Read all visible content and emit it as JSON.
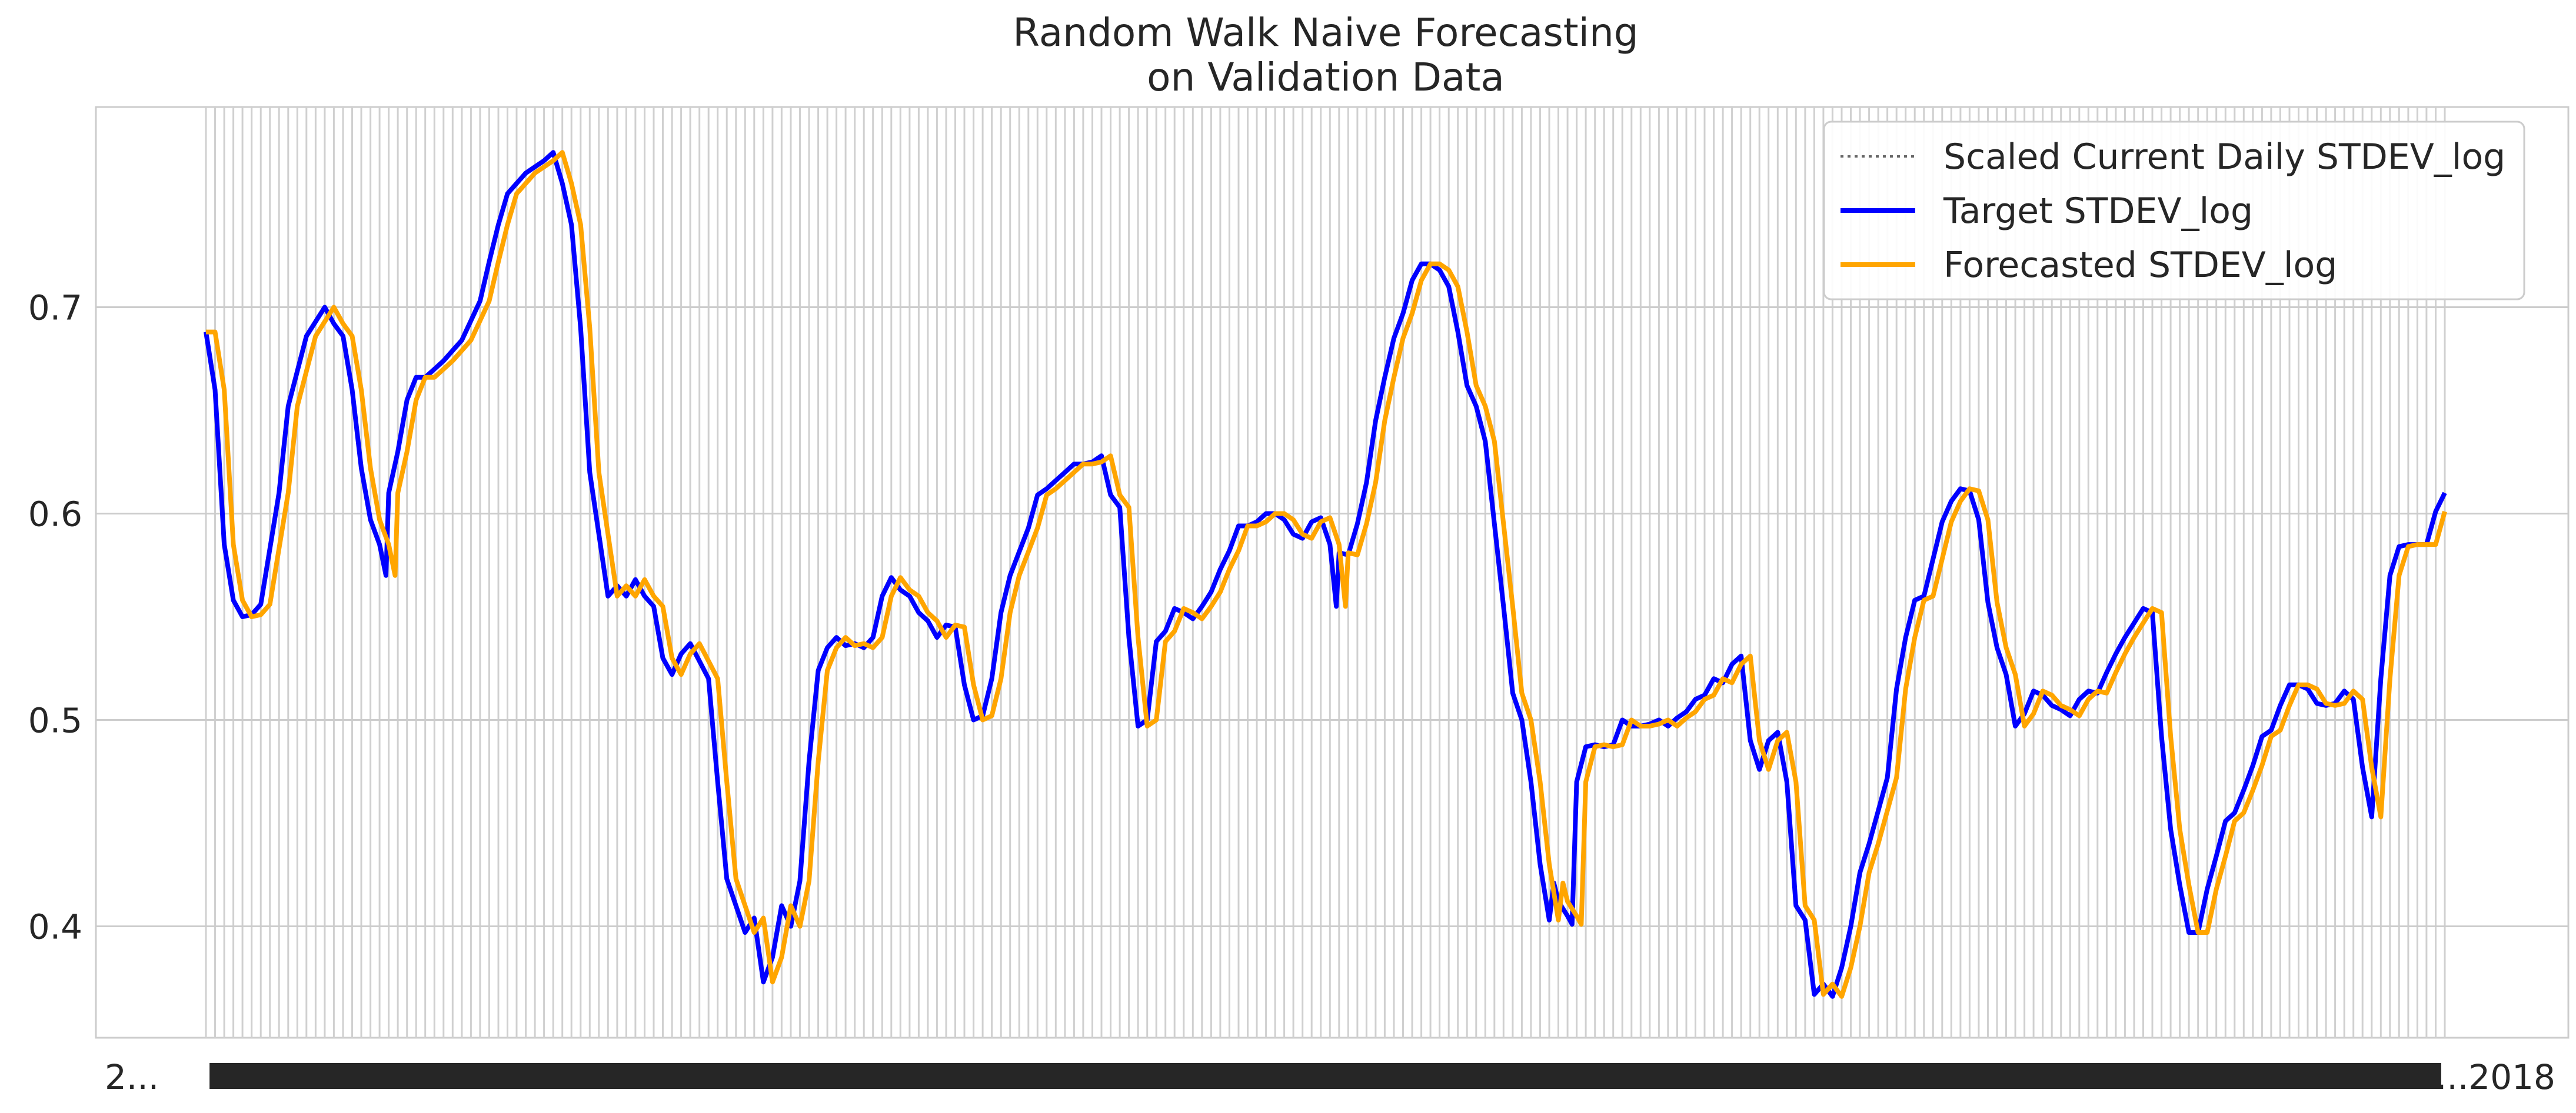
{
  "chart_data": {
    "type": "line",
    "title": "Random Walk Naive Forecasting",
    "subtitle": "on Validation Data",
    "xlabel": "",
    "ylabel": "",
    "ylim": [
      0.346,
      0.797
    ],
    "yticks": [
      "0.4",
      "0.5",
      "0.6",
      "0.7"
    ],
    "yticks_values": [
      0.4,
      0.5,
      0.6,
      0.7
    ],
    "xtick_labels_first": "2...",
    "xtick_labels_last": "...2018",
    "grid": true,
    "legend_position": "top-right",
    "legend": [
      {
        "label": "Scaled Current Daily STDEV_log",
        "style": "dotted",
        "color": "#666666"
      },
      {
        "label": "Target STDEV_log",
        "style": "solid",
        "color": "#0000ff"
      },
      {
        "label": "Forecasted STDEV_log",
        "style": "solid",
        "color": "#ffa500"
      }
    ],
    "x_count": 245,
    "series": [
      {
        "name": "Target STDEV_log",
        "color": "#0000ff",
        "anchors": [
          [
            0,
            0.688
          ],
          [
            1,
            0.66
          ],
          [
            2,
            0.585
          ],
          [
            3,
            0.558
          ],
          [
            4,
            0.55
          ],
          [
            5,
            0.551
          ],
          [
            6,
            0.556
          ],
          [
            8,
            0.61
          ],
          [
            9,
            0.652
          ],
          [
            11,
            0.686
          ],
          [
            13,
            0.7
          ],
          [
            14,
            0.692
          ],
          [
            15,
            0.686
          ],
          [
            16,
            0.66
          ],
          [
            17,
            0.622
          ],
          [
            18,
            0.597
          ],
          [
            19,
            0.585
          ],
          [
            19.7,
            0.57
          ],
          [
            20,
            0.61
          ],
          [
            21,
            0.63
          ],
          [
            22,
            0.655
          ],
          [
            23,
            0.666
          ],
          [
            24,
            0.666
          ],
          [
            26,
            0.674
          ],
          [
            28,
            0.684
          ],
          [
            30,
            0.703
          ],
          [
            31,
            0.722
          ],
          [
            32,
            0.74
          ],
          [
            33,
            0.755
          ],
          [
            34,
            0.76
          ],
          [
            35,
            0.765
          ],
          [
            36,
            0.768
          ],
          [
            37,
            0.771
          ],
          [
            38,
            0.775
          ],
          [
            39,
            0.76
          ],
          [
            40,
            0.74
          ],
          [
            41,
            0.69
          ],
          [
            42,
            0.62
          ],
          [
            43,
            0.59
          ],
          [
            44,
            0.56
          ],
          [
            45,
            0.565
          ],
          [
            46,
            0.56
          ],
          [
            47,
            0.568
          ],
          [
            48,
            0.56
          ],
          [
            49,
            0.555
          ],
          [
            50,
            0.53
          ],
          [
            51,
            0.522
          ],
          [
            52,
            0.532
          ],
          [
            53,
            0.537
          ],
          [
            55,
            0.52
          ],
          [
            56,
            0.47
          ],
          [
            57,
            0.423
          ],
          [
            58,
            0.41
          ],
          [
            59,
            0.397
          ],
          [
            60,
            0.404
          ],
          [
            61,
            0.373
          ],
          [
            62,
            0.385
          ],
          [
            63,
            0.41
          ],
          [
            64,
            0.4
          ],
          [
            65,
            0.422
          ],
          [
            66,
            0.48
          ],
          [
            67,
            0.524
          ],
          [
            68,
            0.535
          ],
          [
            69,
            0.54
          ],
          [
            70,
            0.536
          ],
          [
            71,
            0.537
          ],
          [
            72,
            0.535
          ],
          [
            73,
            0.54
          ],
          [
            74,
            0.56
          ],
          [
            75,
            0.569
          ],
          [
            76,
            0.563
          ],
          [
            77,
            0.56
          ],
          [
            78,
            0.552
          ],
          [
            79,
            0.548
          ],
          [
            80,
            0.54
          ],
          [
            81,
            0.546
          ],
          [
            82,
            0.545
          ],
          [
            83,
            0.517
          ],
          [
            84,
            0.5
          ],
          [
            85,
            0.502
          ],
          [
            86,
            0.52
          ],
          [
            87,
            0.552
          ],
          [
            88,
            0.57
          ],
          [
            90,
            0.593
          ],
          [
            91,
            0.609
          ],
          [
            92,
            0.612
          ],
          [
            94,
            0.62
          ],
          [
            95,
            0.624
          ],
          [
            96,
            0.624
          ],
          [
            97,
            0.625
          ],
          [
            98,
            0.628
          ],
          [
            99,
            0.609
          ],
          [
            100,
            0.603
          ],
          [
            101,
            0.54
          ],
          [
            102,
            0.497
          ],
          [
            103,
            0.5
          ],
          [
            104,
            0.538
          ],
          [
            105,
            0.543
          ],
          [
            106,
            0.554
          ],
          [
            107,
            0.552
          ],
          [
            108,
            0.549
          ],
          [
            109,
            0.555
          ],
          [
            110,
            0.562
          ],
          [
            111,
            0.573
          ],
          [
            112,
            0.582
          ],
          [
            113,
            0.594
          ],
          [
            114,
            0.594
          ],
          [
            115,
            0.596
          ],
          [
            116,
            0.6
          ],
          [
            117,
            0.6
          ],
          [
            118,
            0.597
          ],
          [
            119,
            0.59
          ],
          [
            120,
            0.588
          ],
          [
            121,
            0.596
          ],
          [
            122,
            0.598
          ],
          [
            123,
            0.585
          ],
          [
            123.7,
            0.555
          ],
          [
            124,
            0.581
          ],
          [
            125,
            0.58
          ],
          [
            126,
            0.595
          ],
          [
            127,
            0.615
          ],
          [
            128,
            0.645
          ],
          [
            129,
            0.666
          ],
          [
            130,
            0.685
          ],
          [
            131,
            0.697
          ],
          [
            132,
            0.713
          ],
          [
            133,
            0.721
          ],
          [
            134,
            0.721
          ],
          [
            135,
            0.718
          ],
          [
            136,
            0.71
          ],
          [
            137,
            0.688
          ],
          [
            138,
            0.662
          ],
          [
            139,
            0.652
          ],
          [
            140,
            0.635
          ],
          [
            141,
            0.595
          ],
          [
            142,
            0.555
          ],
          [
            143,
            0.513
          ],
          [
            144,
            0.5
          ],
          [
            145,
            0.47
          ],
          [
            146,
            0.43
          ],
          [
            147,
            0.403
          ],
          [
            147.5,
            0.421
          ],
          [
            148,
            0.412
          ],
          [
            149,
            0.405
          ],
          [
            149.5,
            0.401
          ],
          [
            150,
            0.47
          ],
          [
            151,
            0.487
          ],
          [
            152,
            0.488
          ],
          [
            153,
            0.487
          ],
          [
            154,
            0.488
          ],
          [
            155,
            0.5
          ],
          [
            156,
            0.497
          ],
          [
            157,
            0.497
          ],
          [
            158,
            0.498
          ],
          [
            159,
            0.5
          ],
          [
            160,
            0.497
          ],
          [
            161,
            0.501
          ],
          [
            162,
            0.504
          ],
          [
            163,
            0.51
          ],
          [
            164,
            0.512
          ],
          [
            165,
            0.52
          ],
          [
            166,
            0.518
          ],
          [
            167,
            0.527
          ],
          [
            168,
            0.531
          ],
          [
            169,
            0.49
          ],
          [
            170,
            0.476
          ],
          [
            171,
            0.49
          ],
          [
            172,
            0.494
          ],
          [
            173,
            0.47
          ],
          [
            174,
            0.41
          ],
          [
            175,
            0.403
          ],
          [
            176,
            0.367
          ],
          [
            177,
            0.372
          ],
          [
            178,
            0.366
          ],
          [
            179,
            0.38
          ],
          [
            180,
            0.4
          ],
          [
            181,
            0.426
          ],
          [
            182,
            0.44
          ],
          [
            183,
            0.456
          ],
          [
            184,
            0.472
          ],
          [
            185,
            0.515
          ],
          [
            186,
            0.54
          ],
          [
            187,
            0.558
          ],
          [
            188,
            0.56
          ],
          [
            189,
            0.578
          ],
          [
            190,
            0.596
          ],
          [
            191,
            0.606
          ],
          [
            192,
            0.612
          ],
          [
            193,
            0.611
          ],
          [
            194,
            0.597
          ],
          [
            195,
            0.557
          ],
          [
            196,
            0.535
          ],
          [
            197,
            0.522
          ],
          [
            198,
            0.497
          ],
          [
            199,
            0.503
          ],
          [
            200,
            0.514
          ],
          [
            201,
            0.512
          ],
          [
            202,
            0.507
          ],
          [
            203,
            0.505
          ],
          [
            204,
            0.502
          ],
          [
            205,
            0.51
          ],
          [
            206,
            0.514
          ],
          [
            207,
            0.513
          ],
          [
            208,
            0.523
          ],
          [
            209,
            0.532
          ],
          [
            210,
            0.54
          ],
          [
            211,
            0.547
          ],
          [
            212,
            0.554
          ],
          [
            213,
            0.552
          ],
          [
            214,
            0.492
          ],
          [
            215,
            0.447
          ],
          [
            216,
            0.42
          ],
          [
            217,
            0.397
          ],
          [
            218,
            0.397
          ],
          [
            219,
            0.418
          ],
          [
            220,
            0.434
          ],
          [
            221,
            0.451
          ],
          [
            222,
            0.455
          ],
          [
            223,
            0.466
          ],
          [
            224,
            0.478
          ],
          [
            225,
            0.492
          ],
          [
            226,
            0.495
          ],
          [
            227,
            0.507
          ],
          [
            228,
            0.517
          ],
          [
            229,
            0.517
          ],
          [
            230,
            0.515
          ],
          [
            231,
            0.508
          ],
          [
            232,
            0.507
          ],
          [
            233,
            0.508
          ],
          [
            234,
            0.514
          ],
          [
            235,
            0.51
          ],
          [
            236,
            0.477
          ],
          [
            237,
            0.453
          ],
          [
            238,
            0.52
          ],
          [
            239,
            0.57
          ],
          [
            240,
            0.584
          ],
          [
            241,
            0.585
          ],
          [
            242,
            0.585
          ],
          [
            243,
            0.585
          ],
          [
            244,
            0.601
          ],
          [
            245,
            0.61
          ]
        ]
      },
      {
        "name": "Forecasted STDEV_log",
        "color": "#ffa500",
        "shift": 1,
        "first": 0.688
      }
    ]
  }
}
